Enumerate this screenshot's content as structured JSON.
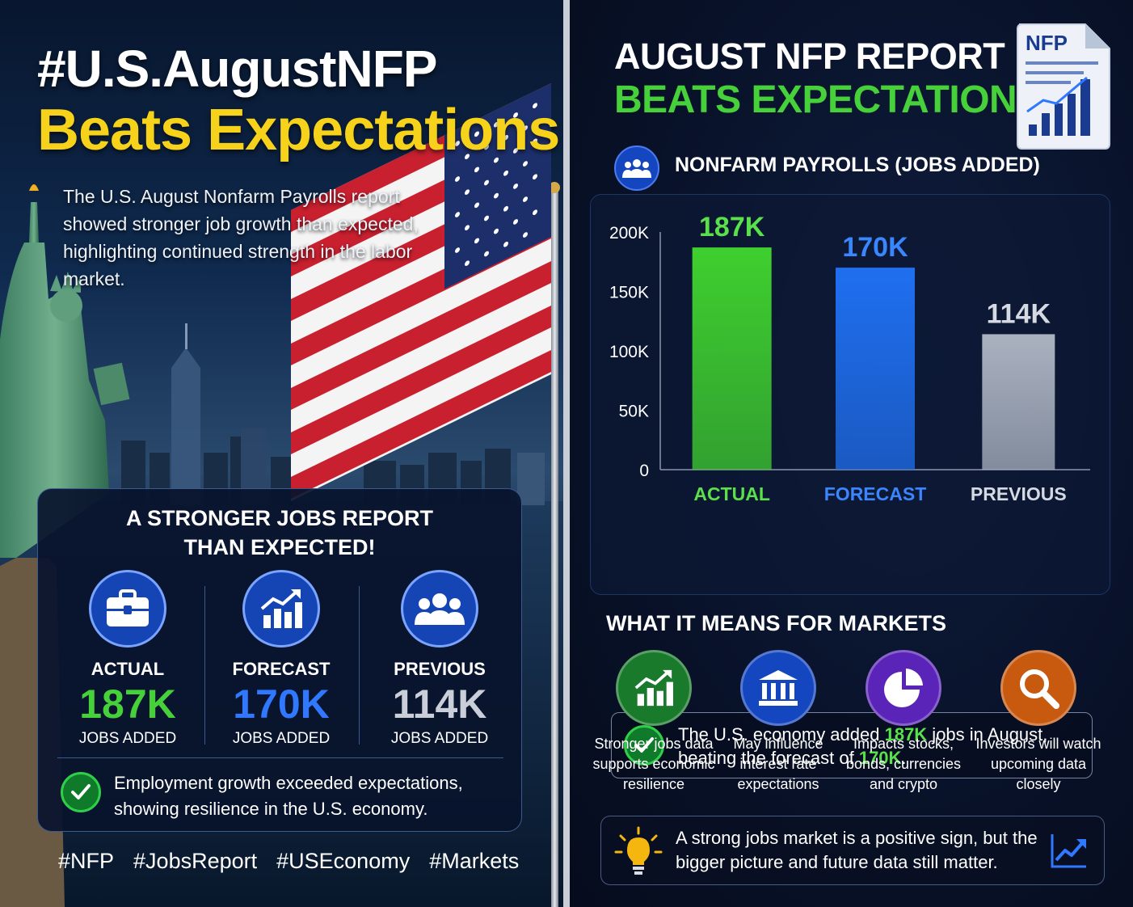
{
  "left": {
    "title_line1": "#U.S.AugustNFP",
    "title_line2": "Beats Expectations",
    "intro": "The U.S. August Nonfarm Payrolls report showed stronger job growth than expected, highlighting continued strength in the labor market.",
    "card": {
      "heading_line1": "A STRONGER JOBS REPORT",
      "heading_line2": "THAN EXPECTED!",
      "stats": [
        {
          "label": "ACTUAL",
          "value": "187K",
          "sub": "JOBS ADDED",
          "color": "#46d13a",
          "icon": "briefcase-icon"
        },
        {
          "label": "FORECAST",
          "value": "170K",
          "sub": "JOBS ADDED",
          "color": "#2f78ff",
          "icon": "growth-chart-icon"
        },
        {
          "label": "PREVIOUS",
          "value": "114K",
          "sub": "JOBS ADDED",
          "color": "#c9ced8",
          "icon": "people-icon"
        }
      ],
      "note": "Employment growth exceeded expectations, showing resilience in the U.S. economy."
    },
    "hashtags": [
      "#NFP",
      "#JobsReport",
      "#USEconomy",
      "#Markets"
    ]
  },
  "right": {
    "title_line1": "AUGUST NFP REPORT",
    "title_line2": "BEATS EXPECTATIONS",
    "doc_label": "NFP",
    "section_title": "NONFARM PAYROLLS (JOBS ADDED)",
    "chart_note": {
      "before": "The U.S. economy added ",
      "actual": "187K",
      "middle": " jobs in August,",
      "line2_before": "beating the forecast of ",
      "forecast": "170K",
      "end": "."
    },
    "markets_title": "WHAT IT MEANS FOR MARKETS",
    "markets": [
      {
        "caption": "Stronger jobs data supports economic resilience",
        "icon": "growth-chart-icon",
        "color": "#1a7a2c"
      },
      {
        "caption": "May influence interest rate expectations",
        "icon": "bank-icon",
        "color": "#1446c0"
      },
      {
        "caption": "Impacts stocks, bonds, currencies and crypto",
        "icon": "pie-chart-icon",
        "color": "#5a24b8"
      },
      {
        "caption": "Investors will watch upcoming data closely",
        "icon": "magnifier-icon",
        "color": "#c85a10"
      }
    ],
    "insight": "A strong jobs market is a positive sign, but the bigger picture and future data still matter."
  },
  "chart_data": {
    "type": "bar",
    "title": "NONFARM PAYROLLS (JOBS ADDED)",
    "categories": [
      "ACTUAL",
      "FORECAST",
      "PREVIOUS"
    ],
    "values": [
      187000,
      170000,
      114000
    ],
    "data_labels": [
      "187K",
      "170K",
      "114K"
    ],
    "colors": [
      "#3fcf2f",
      "#1f6ff0",
      "#aab2c0"
    ],
    "ylim": [
      0,
      200000
    ],
    "yticks": [
      0,
      50000,
      100000,
      150000,
      200000
    ],
    "ytick_labels": [
      "0",
      "50K",
      "100K",
      "150K",
      "200K"
    ],
    "xlabel": "",
    "ylabel": "",
    "grid": false,
    "legend": "none"
  }
}
